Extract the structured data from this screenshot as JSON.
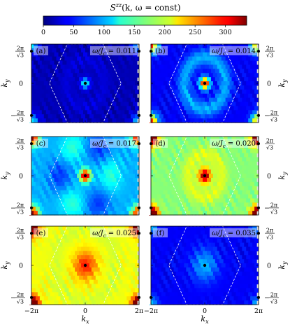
{
  "figure": {
    "colorbar": {
      "title": "S^{zz}(k, ω = const)",
      "title_main": "S",
      "title_sup": "zz",
      "title_rest": "(k, ω = const)",
      "min": 0,
      "max": 335,
      "ticks": [
        "0",
        "50",
        "100",
        "150",
        "200",
        "250",
        "300"
      ],
      "tick_values": [
        0,
        50,
        100,
        150,
        200,
        250,
        300
      ],
      "colormap": "jet"
    },
    "axes": {
      "x_label": "k",
      "x_sub": "x",
      "y_label": "k",
      "y_sub": "y",
      "x_ticks": [
        "−2π",
        "0",
        "2π"
      ],
      "y_tick_zero": "0",
      "y_tick_top_num": "2π",
      "y_tick_top_den": "√3",
      "y_tick_bottom_sign": "−",
      "y_tick_bottom_num": "2π",
      "y_tick_bottom_den": "√3"
    },
    "panels": [
      {
        "label": "(a)",
        "omega_text": "ω/J_c = 0.011",
        "omega_main": "ω/J",
        "omega_sub": "c",
        "omega_value": "0.011"
      },
      {
        "label": "(b)",
        "omega_text": "ω/J_c = 0.014",
        "omega_main": "ω/J",
        "omega_sub": "c",
        "omega_value": "0.014"
      },
      {
        "label": "(c)",
        "omega_text": "ω/J_c = 0.017",
        "omega_main": "ω/J",
        "omega_sub": "c",
        "omega_value": "0.017"
      },
      {
        "label": "(d)",
        "omega_text": "ω/J_c = 0.020",
        "omega_main": "ω/J",
        "omega_sub": "c",
        "omega_value": "0.020"
      },
      {
        "label": "(e)",
        "omega_text": "ω/J_c = 0.025",
        "omega_main": "ω/J",
        "omega_sub": "c",
        "omega_value": "0.025"
      },
      {
        "label": "(f)",
        "omega_text": "ω/J_c = 0.035",
        "omega_main": "ω/J",
        "omega_sub": "c",
        "omega_value": "0.035"
      }
    ]
  },
  "chart_data": {
    "type": "heatmap",
    "colorbar_range": [
      0,
      335
    ],
    "xlim": [
      "−2π",
      "2π"
    ],
    "ylim": [
      "−2π/√3",
      "2π/√3"
    ],
    "panels": [
      {
        "label": "(a)",
        "omega": 0.011,
        "center_peak": 135,
        "background": 20
      },
      {
        "label": "(b)",
        "omega": 0.014,
        "center_peak": 320,
        "background": 40
      },
      {
        "label": "(c)",
        "omega": 0.017,
        "center_peak": 330,
        "background": 110
      },
      {
        "label": "(d)",
        "omega": 0.02,
        "center_peak": 335,
        "background": 180
      },
      {
        "label": "(e)",
        "omega": 0.025,
        "center_peak": 280,
        "background": 210
      },
      {
        "label": "(f)",
        "omega": 0.035,
        "center_peak": 85,
        "background": 45
      }
    ]
  }
}
